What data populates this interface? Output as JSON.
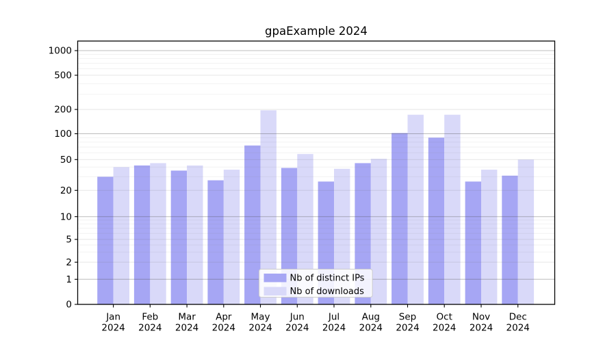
{
  "chart_data": {
    "type": "bar",
    "title": "gpaExample 2024",
    "xlabel": "",
    "ylabel": "",
    "yscale": "symlog",
    "yticks": [
      0,
      1,
      2,
      5,
      10,
      20,
      50,
      100,
      200,
      500,
      1000
    ],
    "ylim": [
      0,
      1150
    ],
    "grid": true,
    "categories": [
      {
        "month": "Jan",
        "year": "2024"
      },
      {
        "month": "Feb",
        "year": "2024"
      },
      {
        "month": "Mar",
        "year": "2024"
      },
      {
        "month": "Apr",
        "year": "2024"
      },
      {
        "month": "May",
        "year": "2024"
      },
      {
        "month": "Jun",
        "year": "2024"
      },
      {
        "month": "Jul",
        "year": "2024"
      },
      {
        "month": "Aug",
        "year": "2024"
      },
      {
        "month": "Sep",
        "year": "2024"
      },
      {
        "month": "Oct",
        "year": "2024"
      },
      {
        "month": "Nov",
        "year": "2024"
      },
      {
        "month": "Dec",
        "year": "2024"
      }
    ],
    "series": [
      {
        "id": "distinct_ips",
        "name": "Nb of distinct IPs",
        "color": "#a6a6f4",
        "values": [
          30,
          42,
          36,
          27,
          73,
          39,
          26,
          45,
          102,
          90,
          26,
          31
        ]
      },
      {
        "id": "downloads",
        "name": "Nb of downloads",
        "color": "#d9d9f9",
        "values": [
          40,
          45,
          42,
          37,
          195,
          58,
          38,
          51,
          172,
          172,
          37,
          50
        ]
      }
    ],
    "legend": {
      "position": "lower center",
      "background": "#ffffff",
      "border_color": "#cccccc"
    }
  }
}
